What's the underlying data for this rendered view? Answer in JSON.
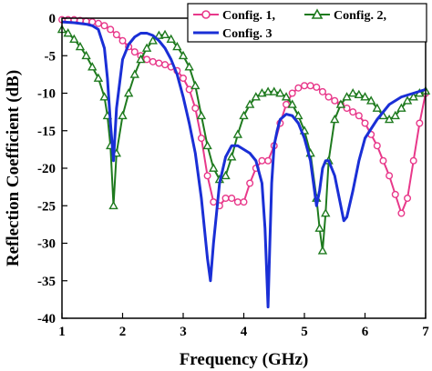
{
  "chart_data": {
    "type": "line",
    "title": "",
    "xlabel": "Frequency (GHz)",
    "ylabel": "Reflection Coefficient (dB)",
    "xlim": [
      1,
      7
    ],
    "ylim": [
      -40,
      0
    ],
    "xticks": [
      1,
      2,
      3,
      4,
      5,
      6,
      7
    ],
    "yticks": [
      0,
      -5,
      -10,
      -15,
      -20,
      -25,
      -30,
      -35,
      -40
    ],
    "grid": false,
    "legend_position": "top-right",
    "series": [
      {
        "name": "Config. 1,",
        "color": "#e8388a",
        "marker": "circle",
        "x": [
          1.0,
          1.1,
          1.2,
          1.3,
          1.4,
          1.5,
          1.6,
          1.7,
          1.8,
          1.9,
          2.0,
          2.1,
          2.2,
          2.3,
          2.4,
          2.5,
          2.6,
          2.7,
          2.8,
          2.9,
          3.0,
          3.1,
          3.2,
          3.3,
          3.4,
          3.5,
          3.6,
          3.7,
          3.8,
          3.9,
          4.0,
          4.1,
          4.2,
          4.3,
          4.4,
          4.5,
          4.6,
          4.7,
          4.8,
          4.9,
          5.0,
          5.1,
          5.2,
          5.3,
          5.4,
          5.5,
          5.6,
          5.7,
          5.8,
          5.9,
          6.0,
          6.1,
          6.2,
          6.3,
          6.4,
          6.5,
          6.6,
          6.7,
          6.8,
          6.9,
          7.0
        ],
        "y": [
          -0.2,
          -0.2,
          -0.2,
          -0.3,
          -0.4,
          -0.5,
          -0.7,
          -1.0,
          -1.5,
          -2.2,
          -3.0,
          -3.8,
          -4.5,
          -5.0,
          -5.5,
          -5.8,
          -6.0,
          -6.2,
          -6.5,
          -7.0,
          -8.0,
          -9.5,
          -12.0,
          -16.0,
          -21.0,
          -24.5,
          -25.0,
          -24.0,
          -24.0,
          -24.5,
          -24.5,
          -22.0,
          -20.0,
          -19.0,
          -19.0,
          -17.0,
          -14.0,
          -11.5,
          -10.0,
          -9.3,
          -9.0,
          -9.0,
          -9.2,
          -9.8,
          -10.5,
          -11.0,
          -11.5,
          -12.0,
          -12.5,
          -13.0,
          -14.0,
          -15.5,
          -17.0,
          -19.0,
          -21.0,
          -23.5,
          -26.0,
          -24.0,
          -19.0,
          -14.0,
          -10.0
        ]
      },
      {
        "name": "Config. 2,",
        "color": "#1e7a1e",
        "marker": "triangle",
        "x": [
          1.0,
          1.1,
          1.2,
          1.3,
          1.4,
          1.5,
          1.6,
          1.7,
          1.75,
          1.8,
          1.85,
          1.9,
          2.0,
          2.1,
          2.2,
          2.3,
          2.4,
          2.5,
          2.6,
          2.7,
          2.8,
          2.9,
          3.0,
          3.1,
          3.2,
          3.3,
          3.4,
          3.5,
          3.6,
          3.7,
          3.8,
          3.9,
          4.0,
          4.1,
          4.2,
          4.3,
          4.4,
          4.5,
          4.6,
          4.7,
          4.8,
          4.9,
          5.0,
          5.1,
          5.2,
          5.25,
          5.3,
          5.35,
          5.4,
          5.5,
          5.6,
          5.7,
          5.8,
          5.9,
          6.0,
          6.1,
          6.2,
          6.3,
          6.4,
          6.5,
          6.6,
          6.7,
          6.8,
          6.9,
          7.0
        ],
        "y": [
          -1.5,
          -2.0,
          -2.8,
          -3.8,
          -5.0,
          -6.5,
          -8.0,
          -10.5,
          -13.0,
          -17.0,
          -25.0,
          -18.0,
          -13.0,
          -10.0,
          -7.5,
          -5.5,
          -4.0,
          -3.0,
          -2.3,
          -2.2,
          -2.8,
          -3.8,
          -5.0,
          -6.5,
          -9.0,
          -13.0,
          -17.0,
          -20.0,
          -21.5,
          -21.0,
          -18.5,
          -15.5,
          -13.0,
          -11.5,
          -10.5,
          -10.0,
          -9.8,
          -9.8,
          -10.0,
          -10.5,
          -11.5,
          -13.0,
          -15.0,
          -18.0,
          -24.0,
          -28.0,
          -31.0,
          -26.0,
          -19.0,
          -13.5,
          -11.5,
          -10.5,
          -10.0,
          -10.2,
          -10.5,
          -11.0,
          -12.0,
          -13.0,
          -13.5,
          -13.0,
          -12.0,
          -11.0,
          -10.5,
          -10.0,
          -9.7
        ]
      },
      {
        "name": "Config. 3",
        "color": "#1a2fd6",
        "marker": "none",
        "x": [
          1.0,
          1.2,
          1.4,
          1.5,
          1.6,
          1.7,
          1.75,
          1.8,
          1.85,
          1.9,
          2.0,
          2.1,
          2.2,
          2.3,
          2.4,
          2.5,
          2.6,
          2.7,
          2.8,
          2.9,
          3.0,
          3.1,
          3.2,
          3.3,
          3.4,
          3.45,
          3.5,
          3.6,
          3.7,
          3.8,
          3.9,
          4.0,
          4.1,
          4.2,
          4.3,
          4.35,
          4.4,
          4.43,
          4.46,
          4.5,
          4.55,
          4.6,
          4.7,
          4.8,
          4.9,
          5.0,
          5.1,
          5.15,
          5.2,
          5.25,
          5.3,
          5.35,
          5.4,
          5.5,
          5.6,
          5.65,
          5.7,
          5.8,
          5.9,
          6.0,
          6.2,
          6.4,
          6.6,
          6.8,
          7.0
        ],
        "y": [
          -0.5,
          -0.6,
          -0.8,
          -1.0,
          -1.5,
          -4.0,
          -8.0,
          -14.0,
          -19.0,
          -12.0,
          -5.5,
          -3.5,
          -2.5,
          -2.0,
          -2.0,
          -2.3,
          -3.0,
          -4.0,
          -5.5,
          -7.5,
          -10.5,
          -14.0,
          -18.0,
          -24.0,
          -32.0,
          -35.0,
          -30.0,
          -22.0,
          -18.5,
          -17.0,
          -17.0,
          -17.5,
          -18.0,
          -19.0,
          -22.0,
          -28.0,
          -38.5,
          -30.0,
          -22.0,
          -17.0,
          -15.0,
          -13.5,
          -12.8,
          -13.0,
          -14.0,
          -16.0,
          -19.0,
          -22.0,
          -25.0,
          -23.0,
          -20.0,
          -19.0,
          -19.0,
          -21.0,
          -25.0,
          -27.0,
          -26.5,
          -23.0,
          -19.0,
          -16.0,
          -13.5,
          -11.5,
          -10.5,
          -10.0,
          -9.5
        ]
      }
    ]
  }
}
